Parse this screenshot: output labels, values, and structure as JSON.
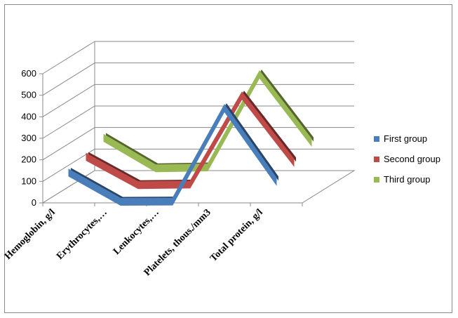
{
  "chart_data": {
    "type": "line",
    "style": "3d-line",
    "categories": [
      "Hemoglobin, g/l",
      "Erythrocytes,…",
      "Lenkocytes,…",
      "Platelets, thous./mm3",
      "Total protein, g/l"
    ],
    "series": [
      {
        "name": "First group",
        "values": [
          140,
          5,
          6,
          440,
          100
        ],
        "color": "#4a7ebb"
      },
      {
        "name": "Second group",
        "values": [
          135,
          4,
          7,
          420,
          110
        ],
        "color": "#be4b48"
      },
      {
        "name": "Third group",
        "values": [
          145,
          4,
          8,
          440,
          125
        ],
        "color": "#98b954"
      }
    ],
    "yticks": [
      0,
      100,
      200,
      300,
      400,
      500,
      600
    ],
    "ylim": [
      0,
      600
    ],
    "grid": true,
    "legend_position": "right"
  }
}
